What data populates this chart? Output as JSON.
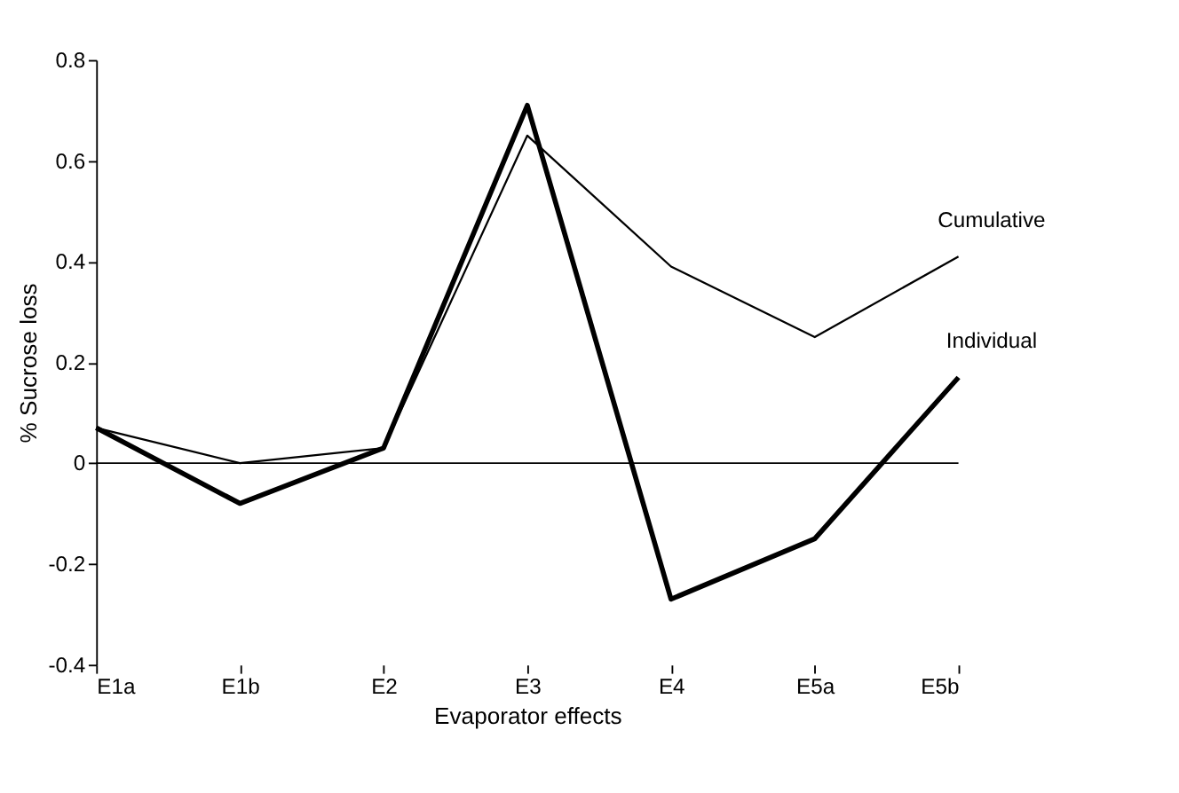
{
  "chart_data": {
    "type": "line",
    "xlabel": "Evaporator effects",
    "ylabel": "% Sucrose loss",
    "categories": [
      "E1a",
      "E1b",
      "E2",
      "E3",
      "E4",
      "E5a",
      "E5b"
    ],
    "series": [
      {
        "name": "Cumulative",
        "color": "#000000",
        "values": [
          0.07,
          0.0,
          0.03,
          0.65,
          0.39,
          0.25,
          0.41
        ]
      },
      {
        "name": "Individual",
        "color": "#000000",
        "values": [
          0.07,
          -0.08,
          0.03,
          0.71,
          -0.27,
          -0.15,
          0.17
        ]
      }
    ],
    "ylim": [
      -0.4,
      0.8
    ],
    "yticks": [
      -0.4,
      -0.2,
      0,
      0.2,
      0.4,
      0.6,
      0.8
    ],
    "ref_lines": [
      {
        "axis": "y",
        "value": 0,
        "label": null
      }
    ],
    "grid": false,
    "legend": false,
    "marker": "none",
    "line_style": "solid"
  }
}
